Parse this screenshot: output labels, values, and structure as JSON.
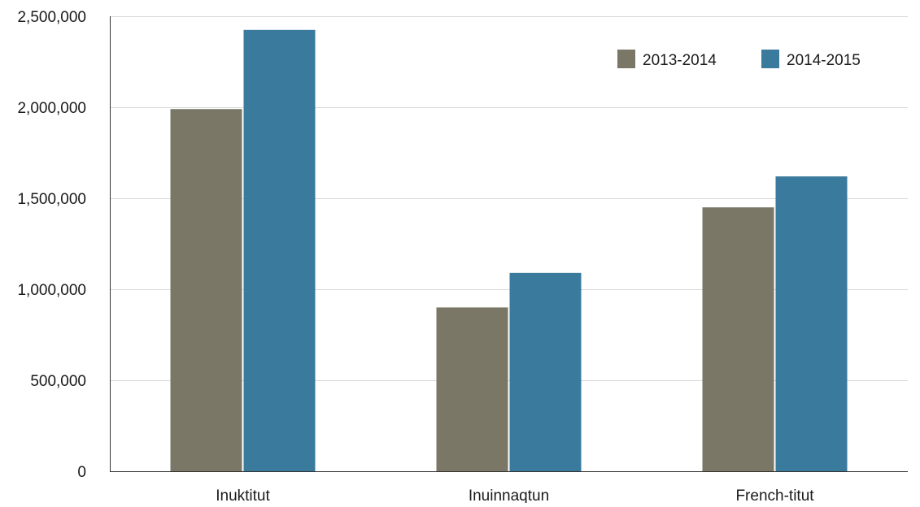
{
  "chart_data": {
    "type": "bar",
    "title": "",
    "xlabel": "",
    "ylabel": "",
    "categories": [
      "Inuktitut",
      "Inuinnaqtun",
      "French-titut"
    ],
    "series": [
      {
        "name": "2013-2014",
        "color": "#7a7766",
        "values": [
          1990000,
          900000,
          1450000
        ]
      },
      {
        "name": "2014-2015",
        "color": "#3a7a9c",
        "values": [
          2425000,
          1090000,
          1620000
        ]
      }
    ],
    "ylim": [
      0,
      2500000
    ],
    "yticks": [
      0,
      500000,
      1000000,
      1500000,
      2000000,
      2500000
    ],
    "ytick_labels": [
      "0",
      "500,000",
      "1,000,000",
      "1,500,000",
      "2,000,000",
      "2,500,000"
    ],
    "grid": true,
    "legend_position": "top-right"
  }
}
